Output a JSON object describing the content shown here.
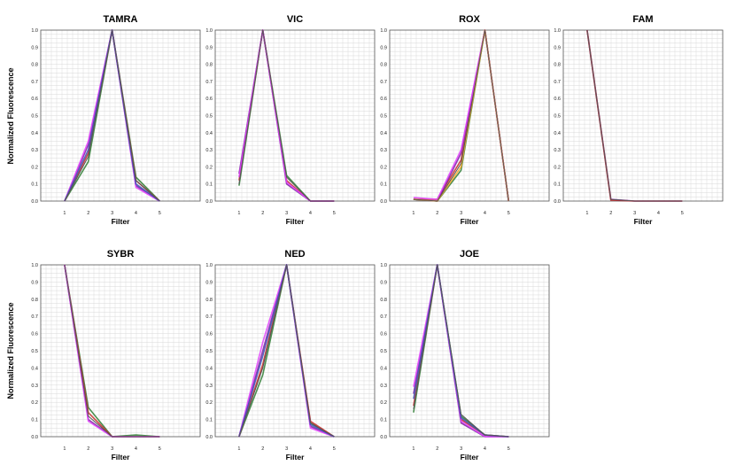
{
  "figure": {
    "ylabel_row1": "Normalized Fluorescence",
    "ylabel_row2": "Normalized Fluorescence"
  },
  "chart_data": [
    {
      "type": "line",
      "title": "TAMRA",
      "xlabel": "Filter",
      "ylabel": "Normalized Fluorescence",
      "categories": [
        "1",
        "2",
        "3",
        "4",
        "5"
      ],
      "ylim": [
        0,
        1
      ],
      "yticks": [
        "0.0",
        "0.1",
        "0.2",
        "0.3",
        "0.4",
        "0.5",
        "0.6",
        "0.7",
        "0.8",
        "0.9",
        "1.0"
      ],
      "grid": true,
      "series": [
        {
          "color": "#2e7d32",
          "values": [
            0,
            0.23,
            1,
            0.14,
            0
          ]
        },
        {
          "color": "#c62828",
          "values": [
            0,
            0.28,
            1,
            0.12,
            0
          ]
        },
        {
          "color": "#7b1fa2",
          "values": [
            0,
            0.33,
            1,
            0.09,
            0
          ]
        },
        {
          "color": "#e040fb",
          "values": [
            0,
            0.35,
            1,
            0.08,
            0
          ]
        },
        {
          "color": "#3f51b5",
          "values": [
            0,
            0.3,
            1,
            0.1,
            0
          ]
        },
        {
          "color": "#555555",
          "values": [
            0,
            0.26,
            1,
            0.12,
            0
          ]
        }
      ]
    },
    {
      "type": "line",
      "title": "VIC",
      "xlabel": "Filter",
      "ylabel": "",
      "categories": [
        "1",
        "2",
        "3",
        "4",
        "5"
      ],
      "ylim": [
        0,
        1
      ],
      "yticks": [
        "0.0",
        "0.1",
        "0.2",
        "0.3",
        "0.4",
        "0.5",
        "0.6",
        "0.7",
        "0.8",
        "0.9",
        "1.0"
      ],
      "grid": true,
      "series": [
        {
          "color": "#2e7d32",
          "values": [
            0.09,
            1,
            0.15,
            0,
            0
          ]
        },
        {
          "color": "#c62828",
          "values": [
            0.12,
            1,
            0.12,
            0,
            0
          ]
        },
        {
          "color": "#7b1fa2",
          "values": [
            0.16,
            1,
            0.1,
            0,
            0
          ]
        },
        {
          "color": "#e040fb",
          "values": [
            0.14,
            1,
            0.11,
            0,
            0
          ]
        },
        {
          "color": "#555555",
          "values": [
            0.1,
            1,
            0.14,
            0,
            0
          ]
        }
      ]
    },
    {
      "type": "line",
      "title": "ROX",
      "xlabel": "Filter",
      "ylabel": "",
      "categories": [
        "1",
        "2",
        "3",
        "4",
        "5"
      ],
      "ylim": [
        0,
        1
      ],
      "yticks": [
        "0.0",
        "0.1",
        "0.2",
        "0.3",
        "0.4",
        "0.5",
        "0.6",
        "0.7",
        "0.8",
        "0.9",
        "1.0"
      ],
      "grid": true,
      "series": [
        {
          "color": "#2e7d32",
          "values": [
            0.01,
            0.0,
            0.18,
            1,
            0
          ]
        },
        {
          "color": "#c62828",
          "values": [
            0.01,
            0.01,
            0.24,
            1,
            0
          ]
        },
        {
          "color": "#7b1fa2",
          "values": [
            0.01,
            0.0,
            0.28,
            1,
            0
          ]
        },
        {
          "color": "#e040fb",
          "values": [
            0.02,
            0.01,
            0.3,
            1,
            0
          ]
        },
        {
          "color": "#f9a825",
          "values": [
            0.01,
            0.0,
            0.2,
            1,
            0
          ]
        },
        {
          "color": "#555555",
          "values": [
            0.01,
            0.0,
            0.22,
            1,
            0
          ]
        }
      ]
    },
    {
      "type": "line",
      "title": "FAM",
      "xlabel": "Filter",
      "ylabel": "",
      "categories": [
        "1",
        "2",
        "3",
        "4",
        "5"
      ],
      "ylim": [
        0,
        1
      ],
      "yticks": [
        "0.0",
        "0.1",
        "0.2",
        "0.3",
        "0.4",
        "0.5",
        "0.6",
        "0.7",
        "0.8",
        "0.9",
        "1.0"
      ],
      "grid": true,
      "series": [
        {
          "color": "#7b1fa2",
          "values": [
            1,
            0.01,
            0,
            0,
            0
          ]
        },
        {
          "color": "#c62828",
          "values": [
            1,
            0.005,
            0,
            0,
            0
          ]
        },
        {
          "color": "#555555",
          "values": [
            1,
            0.01,
            0,
            0,
            0
          ]
        }
      ]
    },
    {
      "type": "line",
      "title": "SYBR",
      "xlabel": "Filter",
      "ylabel": "Normalized Fluorescence",
      "categories": [
        "1",
        "2",
        "3",
        "4",
        "5"
      ],
      "ylim": [
        0,
        1
      ],
      "yticks": [
        "0.0",
        "0.1",
        "0.2",
        "0.3",
        "0.4",
        "0.5",
        "0.6",
        "0.7",
        "0.8",
        "0.9",
        "1.0"
      ],
      "grid": true,
      "series": [
        {
          "color": "#2e7d32",
          "values": [
            1,
            0.17,
            0,
            0.01,
            0
          ]
        },
        {
          "color": "#c62828",
          "values": [
            1,
            0.14,
            0,
            0,
            0
          ]
        },
        {
          "color": "#7b1fa2",
          "values": [
            1,
            0.1,
            0,
            0,
            0
          ]
        },
        {
          "color": "#e040fb",
          "values": [
            1,
            0.09,
            0,
            0,
            0
          ]
        },
        {
          "color": "#555555",
          "values": [
            1,
            0.12,
            0,
            0,
            0
          ]
        }
      ]
    },
    {
      "type": "line",
      "title": "NED",
      "xlabel": "Filter",
      "ylabel": "",
      "categories": [
        "1",
        "2",
        "3",
        "4",
        "5"
      ],
      "ylim": [
        0,
        1
      ],
      "yticks": [
        "0.0",
        "0.1",
        "0.2",
        "0.3",
        "0.4",
        "0.5",
        "0.6",
        "0.7",
        "0.8",
        "0.9",
        "1.0"
      ],
      "grid": true,
      "series": [
        {
          "color": "#2e7d32",
          "values": [
            0,
            0.36,
            1,
            0.08,
            0
          ]
        },
        {
          "color": "#c62828",
          "values": [
            0,
            0.42,
            1,
            0.09,
            0
          ]
        },
        {
          "color": "#7b1fa2",
          "values": [
            0,
            0.5,
            1,
            0.06,
            0
          ]
        },
        {
          "color": "#e040fb",
          "values": [
            0,
            0.55,
            1,
            0.05,
            0
          ]
        },
        {
          "color": "#3f51b5",
          "values": [
            0,
            0.47,
            1,
            0.07,
            0
          ]
        },
        {
          "color": "#555555",
          "values": [
            0,
            0.4,
            1,
            0.08,
            0
          ]
        }
      ]
    },
    {
      "type": "line",
      "title": "JOE",
      "xlabel": "Filter",
      "ylabel": "",
      "categories": [
        "1",
        "2",
        "3",
        "4",
        "5"
      ],
      "ylim": [
        0,
        1
      ],
      "yticks": [
        "0.0",
        "0.1",
        "0.2",
        "0.3",
        "0.4",
        "0.5",
        "0.6",
        "0.7",
        "0.8",
        "0.9",
        "1.0"
      ],
      "grid": true,
      "series": [
        {
          "color": "#2e7d32",
          "values": [
            0.14,
            1,
            0.12,
            0.01,
            0
          ]
        },
        {
          "color": "#c62828",
          "values": [
            0.18,
            1,
            0.1,
            0.01,
            0
          ]
        },
        {
          "color": "#7b1fa2",
          "values": [
            0.25,
            1,
            0.08,
            0,
            0
          ]
        },
        {
          "color": "#e040fb",
          "values": [
            0.29,
            1,
            0.09,
            0,
            0
          ]
        },
        {
          "color": "#3f51b5",
          "values": [
            0.22,
            1,
            0.11,
            0.01,
            0
          ]
        },
        {
          "color": "#555555",
          "values": [
            0.16,
            1,
            0.13,
            0.01,
            0
          ]
        }
      ]
    }
  ]
}
